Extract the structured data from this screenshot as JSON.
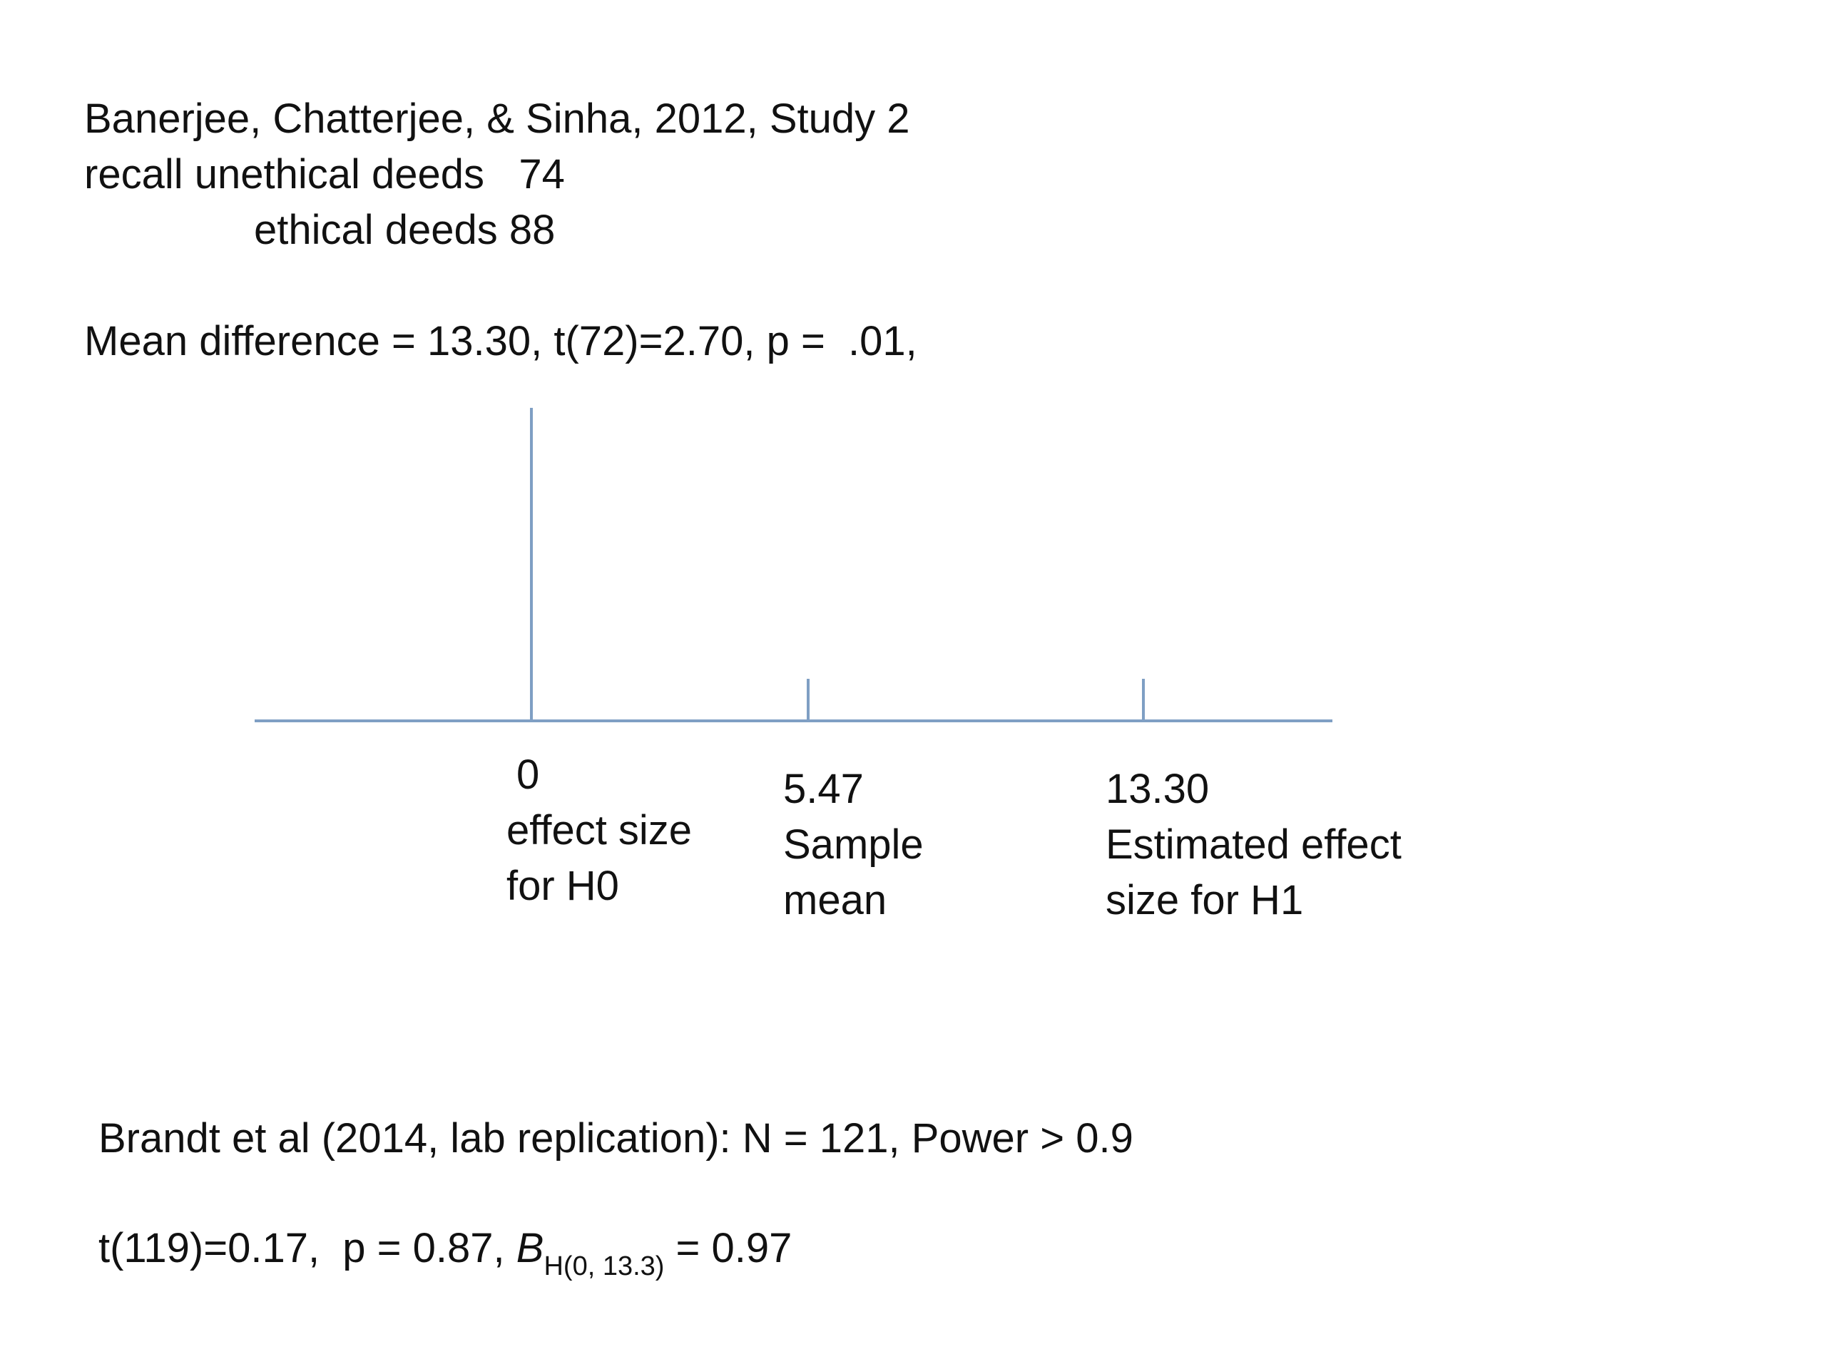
{
  "header": {
    "citation": "Banerjee, Chatterjee, & Sinha, 2012, Study 2",
    "line2": "recall unethical deeds   74",
    "line3": "ethical deeds  88",
    "stats": "Mean difference = 13.30, t(72)=2.70, p =  .01,"
  },
  "diagram": {
    "axis_color": "#7f9fc4",
    "markers": [
      {
        "value": "0",
        "label_line1": "effect size",
        "label_line2": "for H0"
      },
      {
        "value": "5.47",
        "label_line1": "Sample",
        "label_line2": "mean"
      },
      {
        "value": "13.30",
        "label_line1": "Estimated effect",
        "label_line2": "size for H1"
      }
    ]
  },
  "footer": {
    "replication": "Brandt et al (2014, lab replication): N = 121, Power > 0.9",
    "result_prefix": "t(119)=0.17,  p = 0.87, ",
    "bayes_symbol": "B",
    "bayes_subscript": "H(0, 13.3)",
    "bayes_value": " = 0.97"
  }
}
